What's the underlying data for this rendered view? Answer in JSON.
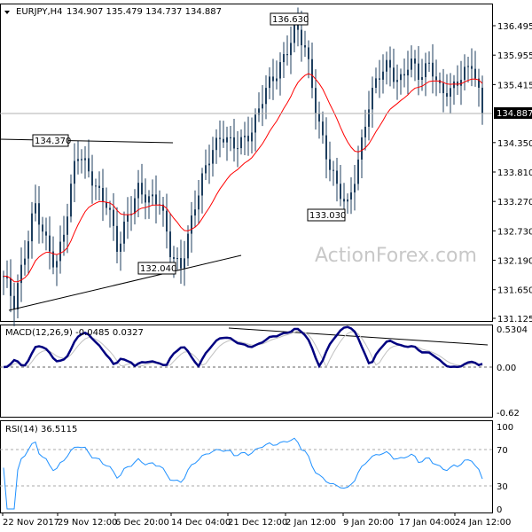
{
  "chart_data": {
    "type": "candlestick",
    "symbol_header": "EURJPY,H4",
    "ohlc_header": "134.907 135.479 134.737 134.887",
    "last_price": "134.887",
    "price_axis_ticks": [
      "136.495",
      "135.955",
      "135.415",
      "134.350",
      "133.810",
      "133.270",
      "132.730",
      "132.190",
      "131.650",
      "131.125"
    ],
    "price_range": [
      131.125,
      136.495
    ],
    "x_ticks": [
      "22 Nov 2017",
      "29 Nov 12:00",
      "6 Dec 20:00",
      "14 Dec 04:00",
      "21 Dec 12:00",
      "2 Jan 12:00",
      "9 Jan 20:00",
      "17 Jan 04:00",
      "24 Jan 12:00"
    ],
    "close_path": [
      131.9,
      131.3,
      132.3,
      133.3,
      132.5,
      132.0,
      133.0,
      134.2,
      133.8,
      133.5,
      133.3,
      132.3,
      133.0,
      133.6,
      133.3,
      133.2,
      132.4,
      132.1,
      132.8,
      133.6,
      134.3,
      134.5,
      134.2,
      134.4,
      134.7,
      135.2,
      135.5,
      136.0,
      136.5,
      136.0,
      135.0,
      134.2,
      133.5,
      133.1,
      134.0,
      135.0,
      135.5,
      135.8,
      135.5,
      135.8,
      135.5,
      135.9,
      135.3,
      135.2,
      135.6,
      135.9,
      134.887
    ],
    "moving_average_color": "#ff0000",
    "candle_color": "#1f3f5f",
    "annotations": [
      "134.370",
      "136.630",
      "133.030",
      "132.040"
    ],
    "watermark": "ActionForex.com",
    "macd": {
      "label": "MACD(12,26,9) -0.0485 0.0327",
      "ticks": [
        "0.5304",
        "0.00",
        "-0.62"
      ],
      "range": [
        -0.62,
        0.5304
      ],
      "main_color": "#000080",
      "signal_color": "#c0c0c0"
    },
    "rsi": {
      "label": "RSI(14) 36.5115",
      "ticks": [
        "100",
        "70",
        "30",
        "0"
      ],
      "levels": [
        70,
        30
      ],
      "color": "#1e90ff"
    }
  }
}
